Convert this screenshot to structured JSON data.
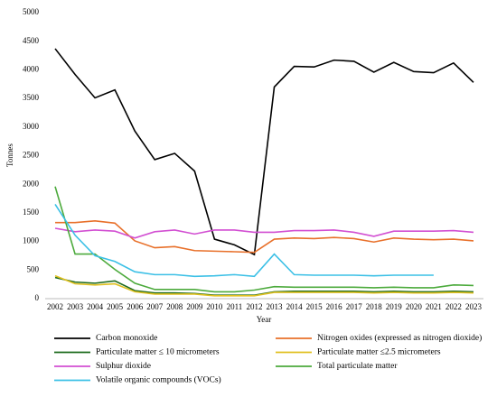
{
  "chart_data": {
    "type": "line",
    "x_label": "Year",
    "y_label": "Tonnes",
    "categories": [
      "2002",
      "2003",
      "2004",
      "2005",
      "2006",
      "2007",
      "2008",
      "2009",
      "2010",
      "2011",
      "2012",
      "2013",
      "2014",
      "2015",
      "2016",
      "2017",
      "2018",
      "2019",
      "2020",
      "2021",
      "2022",
      "2023"
    ],
    "ylim": [
      0,
      5000
    ],
    "yticks": [
      0,
      500,
      1000,
      1500,
      2000,
      2500,
      3000,
      3500,
      4000,
      4500,
      5000
    ],
    "grid": false,
    "legend": "bottom",
    "series": [
      {
        "name": "Carbon monoxide",
        "color": "#000000",
        "values": [
          4370,
          3920,
          3510,
          3650,
          2930,
          2430,
          2540,
          2230,
          1040,
          940,
          770,
          3700,
          4060,
          4050,
          4170,
          4150,
          3960,
          4130,
          3970,
          3950,
          4120,
          3780
        ]
      },
      {
        "name": "Nitrogen oxides (expressed as nitrogen dioxide)",
        "color": "#e8702a",
        "values": [
          1330,
          1330,
          1360,
          1320,
          1010,
          890,
          910,
          840,
          830,
          820,
          810,
          1040,
          1060,
          1050,
          1070,
          1050,
          990,
          1060,
          1040,
          1030,
          1040,
          1010
        ]
      },
      {
        "name": "Particulate matter ≤ 10 micrometers",
        "color": "#1e6b1e",
        "values": [
          370,
          290,
          270,
          310,
          140,
          100,
          100,
          90,
          60,
          60,
          60,
          120,
          130,
          130,
          130,
          130,
          120,
          130,
          120,
          120,
          130,
          120
        ]
      },
      {
        "name": "Particulate matter ≤2.5 micrometers",
        "color": "#e0c020",
        "values": [
          400,
          260,
          240,
          260,
          120,
          80,
          80,
          80,
          50,
          50,
          50,
          110,
          110,
          110,
          110,
          110,
          100,
          110,
          100,
          100,
          110,
          100
        ]
      },
      {
        "name": "Sulphur dioxide",
        "color": "#d24fd2",
        "values": [
          1230,
          1170,
          1200,
          1180,
          1060,
          1170,
          1200,
          1130,
          1200,
          1200,
          1160,
          1160,
          1190,
          1190,
          1200,
          1160,
          1090,
          1180,
          1180,
          1180,
          1190,
          1160
        ]
      },
      {
        "name": "Total particulate matter",
        "color": "#4caa3c",
        "values": [
          1960,
          780,
          780,
          510,
          270,
          160,
          160,
          160,
          120,
          120,
          150,
          210,
          200,
          200,
          200,
          200,
          190,
          200,
          190,
          190,
          240,
          230
        ]
      },
      {
        "name": "Volatile organic compounds (VOCs)",
        "color": "#3cc0e6",
        "values": [
          1650,
          1110,
          750,
          650,
          470,
          420,
          420,
          390,
          400,
          420,
          390,
          780,
          420,
          410,
          410,
          410,
          400,
          410,
          410,
          410,
          null,
          null
        ]
      }
    ]
  }
}
